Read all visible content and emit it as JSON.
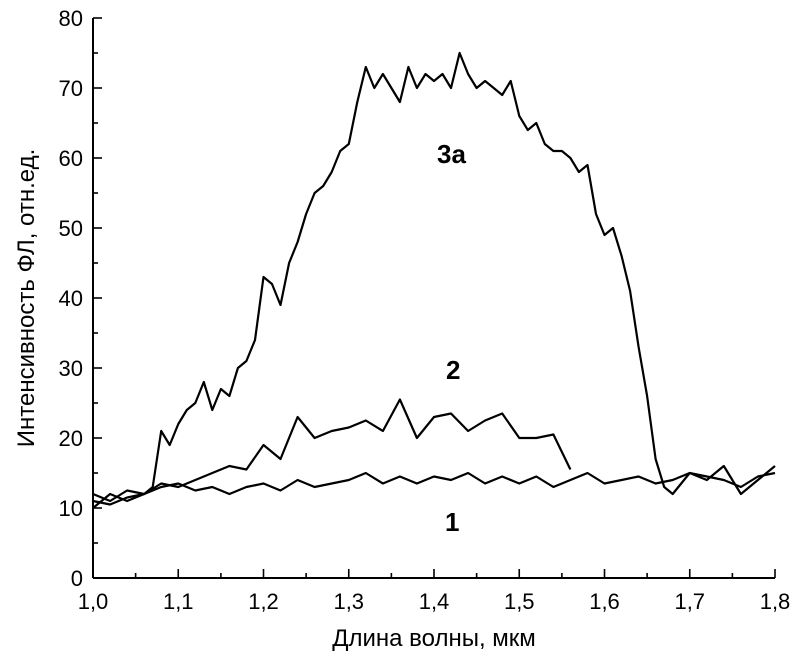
{
  "chart_data": {
    "type": "line",
    "xlabel": "Длина волны, мкм",
    "ylabel": "Интенсивность ФЛ, отн.ед.",
    "xlim": [
      1.0,
      1.8
    ],
    "ylim": [
      0,
      80
    ],
    "x_ticks": [
      "1,0",
      "1,1",
      "1,2",
      "1,3",
      "1,4",
      "1,5",
      "1,6",
      "1,7",
      "1,8"
    ],
    "y_ticks": [
      "0",
      "10",
      "20",
      "30",
      "40",
      "50",
      "60",
      "70",
      "80"
    ],
    "grid": false,
    "legend": "none",
    "series": [
      {
        "name": "1",
        "x": [
          1.0,
          1.02,
          1.04,
          1.06,
          1.08,
          1.1,
          1.12,
          1.14,
          1.16,
          1.18,
          1.2,
          1.22,
          1.24,
          1.26,
          1.28,
          1.3,
          1.32,
          1.34,
          1.36,
          1.38,
          1.4,
          1.42,
          1.44,
          1.46,
          1.48,
          1.5,
          1.52,
          1.54,
          1.56,
          1.58,
          1.6,
          1.62,
          1.64,
          1.66,
          1.68,
          1.7,
          1.72,
          1.74,
          1.76,
          1.78,
          1.8
        ],
        "values": [
          11,
          10.5,
          11.5,
          12,
          13,
          13.5,
          12.5,
          13,
          12,
          13,
          13.5,
          12.5,
          14,
          13,
          13.5,
          14,
          15,
          13.5,
          14.5,
          13.5,
          14.5,
          14,
          15,
          13.5,
          14.5,
          13.5,
          14.5,
          13,
          14,
          15,
          13.5,
          14,
          14.5,
          13.5,
          14,
          15,
          14.5,
          14,
          13,
          14.5,
          15
        ]
      },
      {
        "name": "2",
        "x": [
          1.0,
          1.02,
          1.04,
          1.06,
          1.08,
          1.1,
          1.12,
          1.14,
          1.16,
          1.18,
          1.2,
          1.22,
          1.24,
          1.26,
          1.28,
          1.3,
          1.32,
          1.34,
          1.36,
          1.38,
          1.4,
          1.42,
          1.44,
          1.46,
          1.48,
          1.5,
          1.52,
          1.54,
          1.56
        ],
        "values": [
          12,
          11,
          12.5,
          12,
          13.5,
          13,
          14,
          15,
          16,
          15.5,
          19,
          17,
          23,
          20,
          21,
          21.5,
          22.5,
          21,
          25.5,
          20,
          23,
          23.5,
          21,
          22.5,
          23.5,
          20,
          20,
          20.5,
          15.5
        ]
      },
      {
        "name": "3а",
        "x": [
          1.0,
          1.02,
          1.04,
          1.06,
          1.07,
          1.08,
          1.09,
          1.1,
          1.11,
          1.12,
          1.13,
          1.14,
          1.15,
          1.16,
          1.17,
          1.18,
          1.19,
          1.2,
          1.21,
          1.22,
          1.23,
          1.24,
          1.25,
          1.26,
          1.27,
          1.28,
          1.29,
          1.3,
          1.31,
          1.32,
          1.33,
          1.34,
          1.35,
          1.36,
          1.37,
          1.38,
          1.39,
          1.4,
          1.41,
          1.42,
          1.43,
          1.44,
          1.45,
          1.46,
          1.47,
          1.48,
          1.49,
          1.5,
          1.51,
          1.52,
          1.53,
          1.54,
          1.55,
          1.56,
          1.57,
          1.58,
          1.59,
          1.6,
          1.61,
          1.62,
          1.63,
          1.64,
          1.65,
          1.66,
          1.67,
          1.68,
          1.7,
          1.72,
          1.74,
          1.76,
          1.78,
          1.8
        ],
        "values": [
          10,
          12,
          11,
          12,
          13,
          21,
          19,
          22,
          24,
          25,
          28,
          24,
          27,
          26,
          30,
          31,
          34,
          43,
          42,
          39,
          45,
          48,
          52,
          55,
          56,
          58,
          61,
          62,
          68,
          73,
          70,
          72,
          70,
          68,
          73,
          70,
          72,
          71,
          72,
          70,
          75,
          72,
          70,
          71,
          70,
          69,
          71,
          66,
          64,
          65,
          62,
          61,
          61,
          60,
          58,
          59,
          52,
          49,
          50,
          46,
          41,
          33,
          26,
          17,
          13,
          12,
          15,
          14,
          16,
          12,
          14,
          16
        ]
      }
    ],
    "annotations": [
      "3а",
      "2",
      "1"
    ]
  }
}
